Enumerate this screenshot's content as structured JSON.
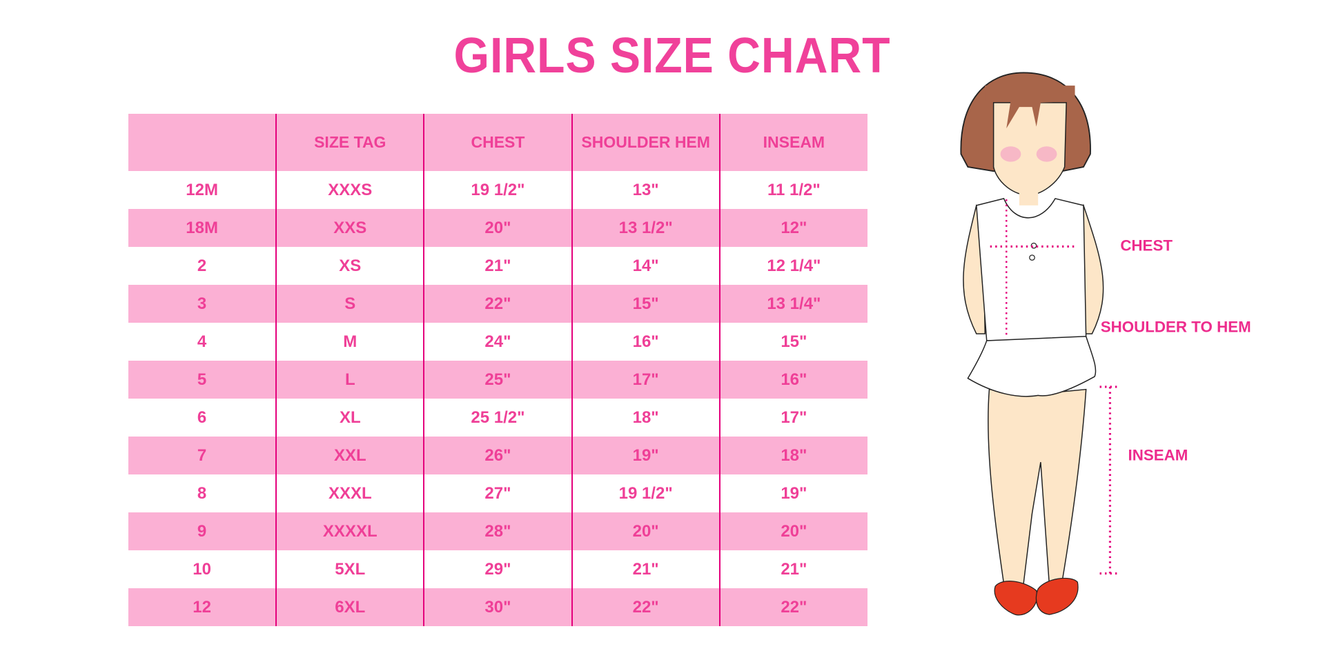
{
  "title": "GIRLS SIZE CHART",
  "table": {
    "headers": [
      "",
      "SIZE TAG",
      "CHEST",
      "SHOULDER HEM",
      "INSEAM"
    ],
    "rows": [
      [
        "12M",
        "XXXS",
        "19 1/2\"",
        "13\"",
        "11 1/2\""
      ],
      [
        "18M",
        "XXS",
        "20\"",
        "13 1/2\"",
        "12\""
      ],
      [
        "2",
        "XS",
        "21\"",
        "14\"",
        "12 1/4\""
      ],
      [
        "3",
        "S",
        "22\"",
        "15\"",
        "13 1/4\""
      ],
      [
        "4",
        "M",
        "24\"",
        "16\"",
        "15\""
      ],
      [
        "5",
        "L",
        "25\"",
        "17\"",
        "16\""
      ],
      [
        "6",
        "XL",
        "25 1/2\"",
        "18\"",
        "17\""
      ],
      [
        "7",
        "XXL",
        "26\"",
        "19\"",
        "18\""
      ],
      [
        "8",
        "XXXL",
        "27\"",
        "19 1/2\"",
        "19\""
      ],
      [
        "9",
        "XXXXL",
        "28\"",
        "20\"",
        "20\""
      ],
      [
        "10",
        "5XL",
        "29\"",
        "21\"",
        "21\""
      ],
      [
        "12",
        "6XL",
        "30\"",
        "22\"",
        "22\""
      ]
    ]
  },
  "figure": {
    "labels": {
      "chest": "CHEST",
      "shoulder_to_hem": "SHOULDER TO HEM",
      "inseam": "INSEAM"
    }
  },
  "colors": {
    "accent": "#f0419a",
    "band": "#fbb0d4",
    "divider": "#e4007c"
  }
}
